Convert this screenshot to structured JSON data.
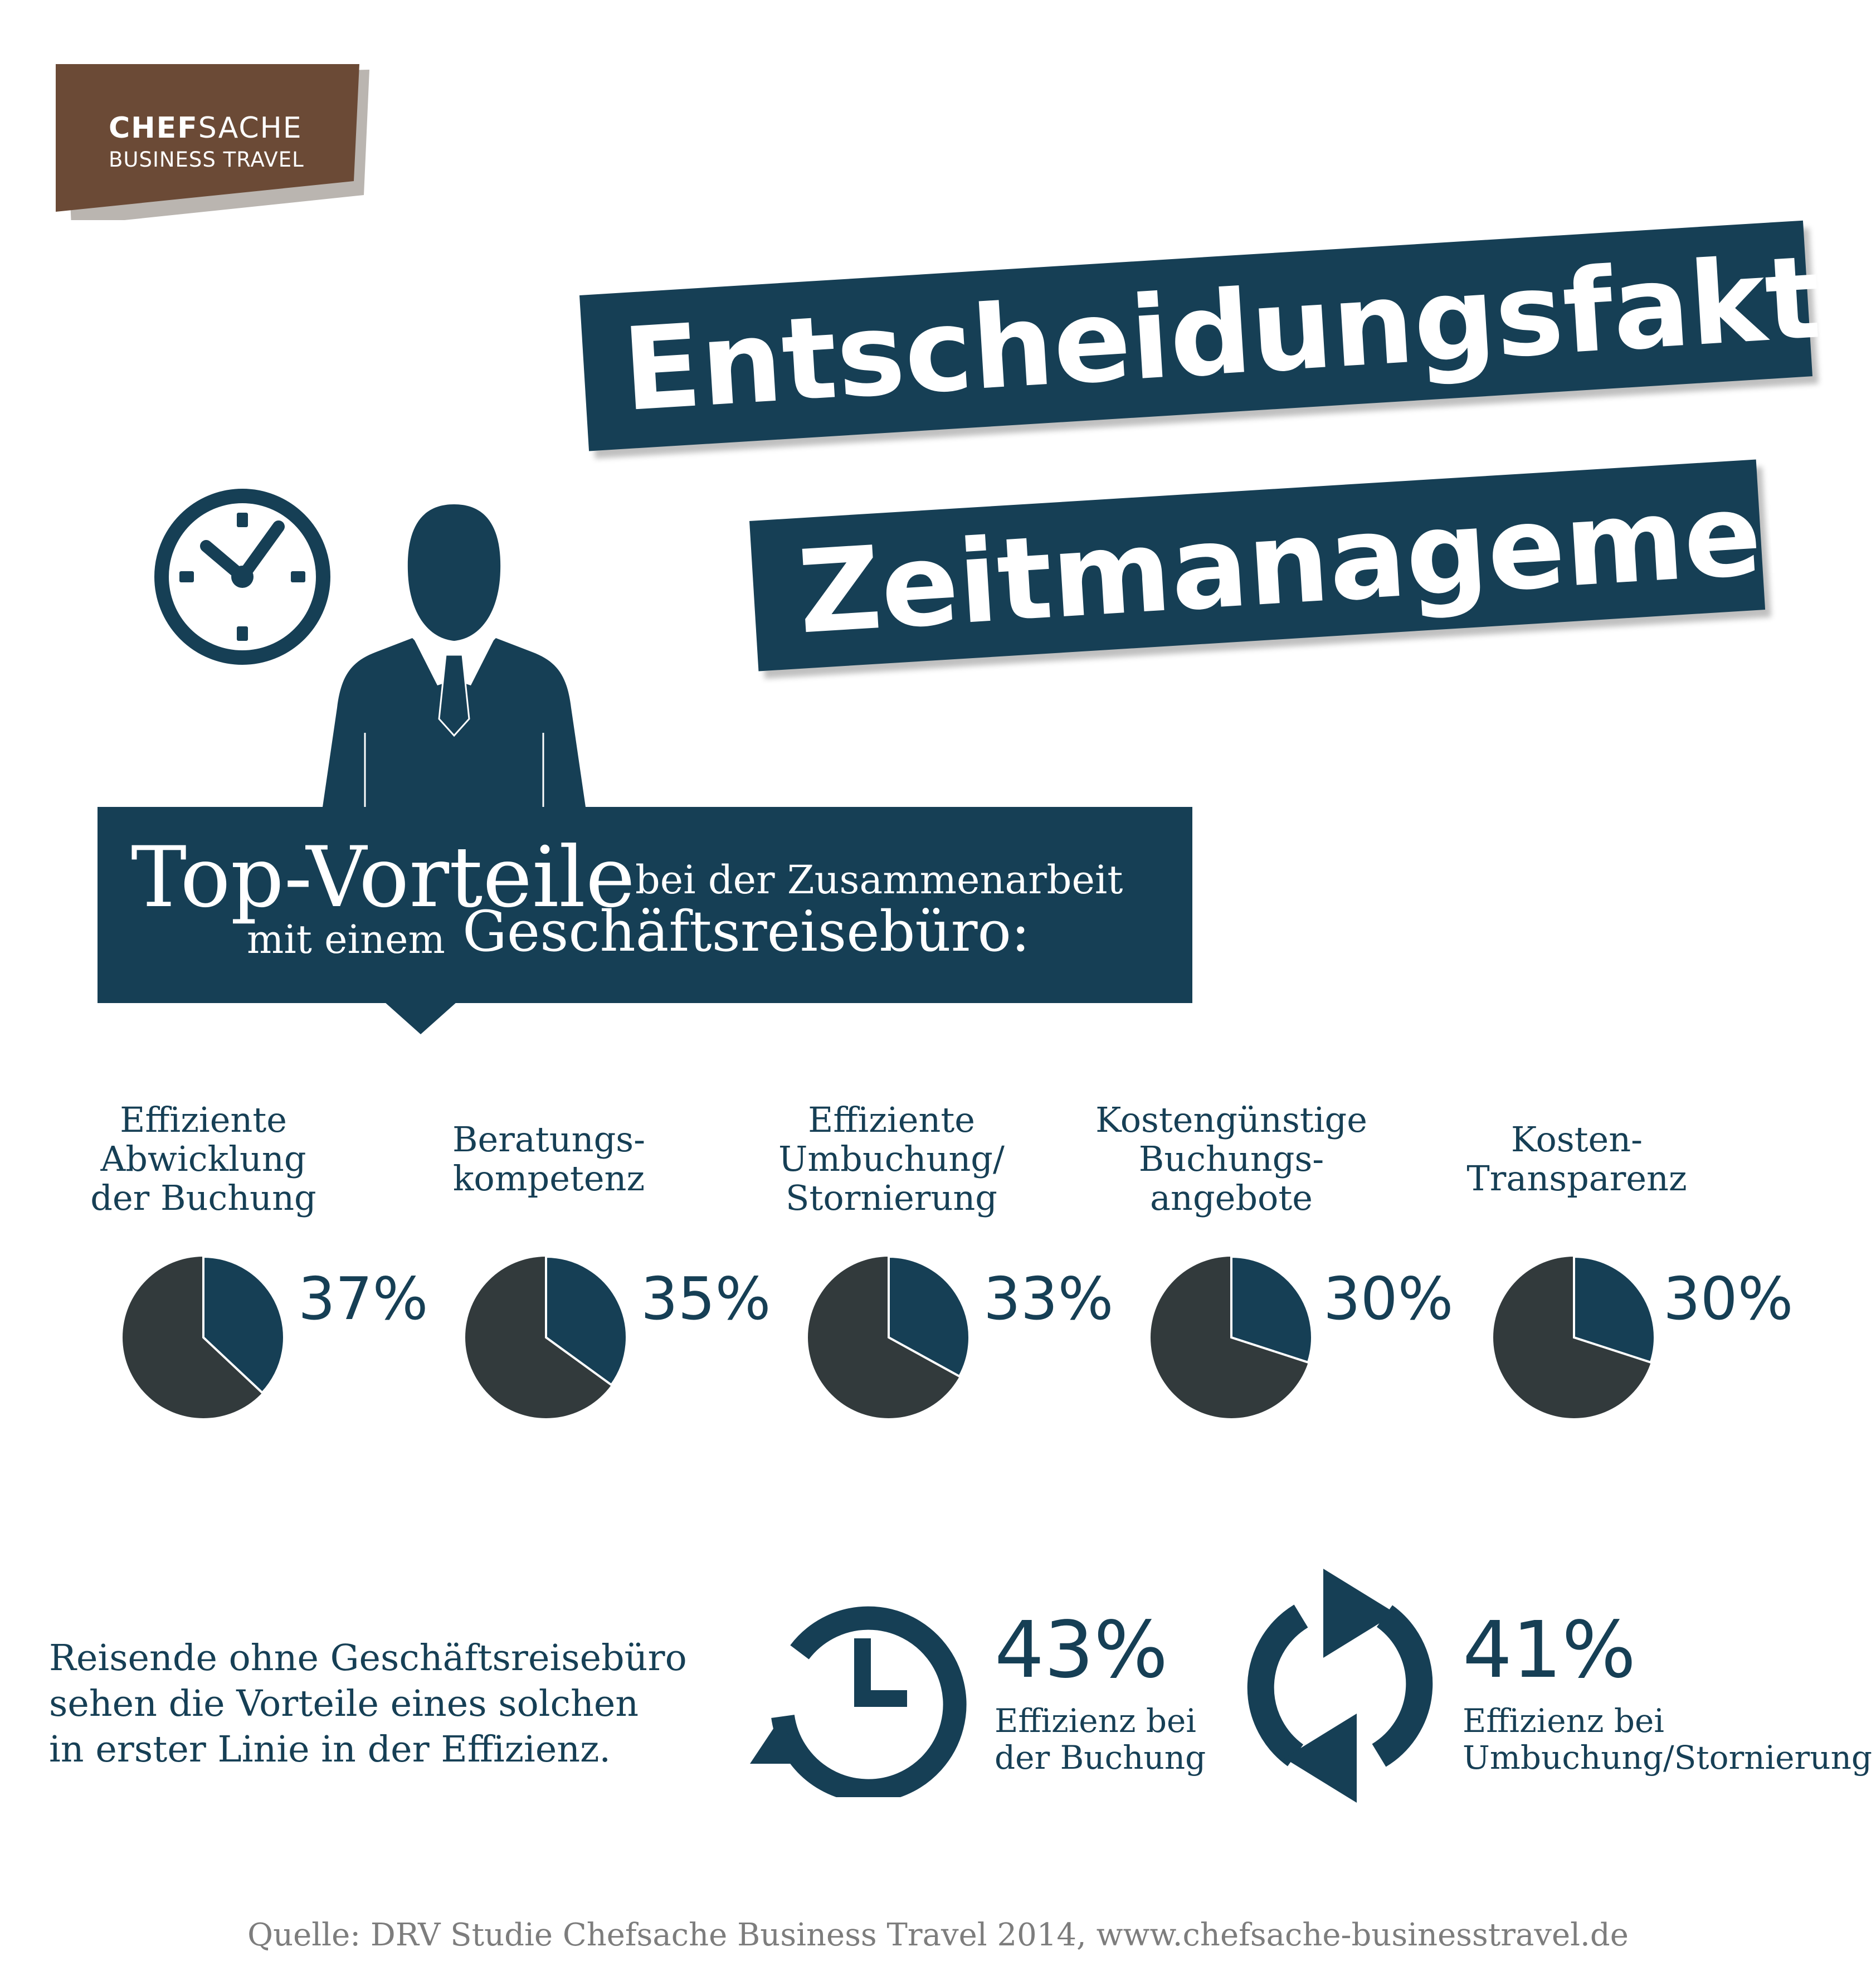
{
  "logo": {
    "bold": "CHEF",
    "rest": "SACHE",
    "subtitle": "BUSINESS TRAVEL",
    "color": "#6b4a36"
  },
  "title": {
    "line1": "Entscheidungsfaktor",
    "line2": "Zeitmanagement"
  },
  "box": {
    "big": "Top-Vorteile",
    "sub1": "bei der Zusammenarbeit",
    "sub2": "mit einem",
    "sub3": "Geschäftsreisebüro:"
  },
  "colors": {
    "primary": "#163f55",
    "dark": "#323a3c",
    "logo": "#6b4a36",
    "source": "#7d7d7d"
  },
  "chart_data": {
    "type": "pie",
    "categories": [
      [
        "Effiziente",
        "Abwicklung",
        "der Buchung"
      ],
      [
        "Beratungs-",
        "kompetenz"
      ],
      [
        "Effiziente",
        "Umbuchung/",
        "Stornierung"
      ],
      [
        "Kostengünstige",
        "Buchungs-",
        "angebote"
      ],
      [
        "Kosten-",
        "Transparenz"
      ]
    ],
    "values": [
      37,
      35,
      33,
      30,
      30
    ],
    "value_labels": [
      "37%",
      "35%",
      "33%",
      "30%",
      "30%"
    ],
    "unit": "%"
  },
  "bottom": {
    "text": [
      "Reisende ohne Geschäftsreisebüro",
      "sehen die Vorteile eines solchen",
      "in erster Linie in der Effizienz."
    ],
    "stat1": {
      "value": "43%",
      "label": [
        "Effizienz bei",
        "der Buchung"
      ],
      "icon": "clock-arrow-icon"
    },
    "stat2": {
      "value": "41%",
      "label": [
        "Effizienz bei",
        "Umbuchung/Stornierung"
      ],
      "icon": "refresh-arrows-icon"
    }
  },
  "source": "Quelle: DRV Studie Chefsache Business Travel 2014, www.chefsache-businesstravel.de"
}
